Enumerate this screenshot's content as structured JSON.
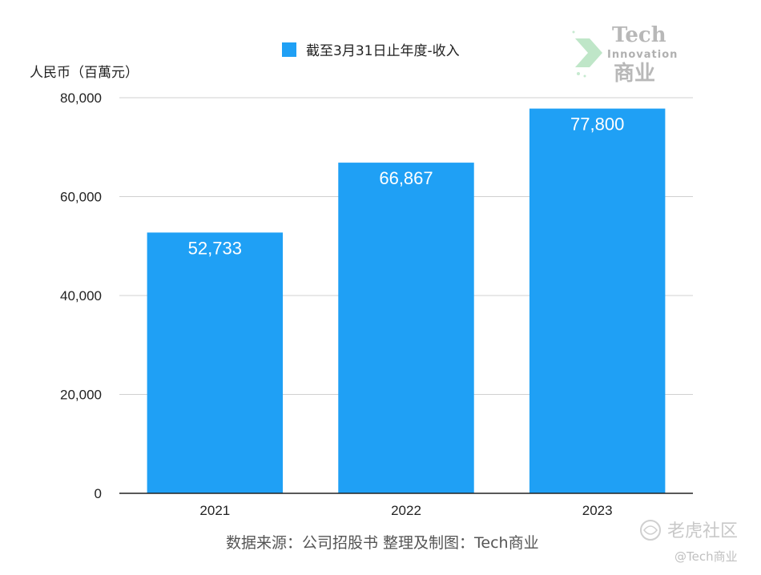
{
  "chart_data": {
    "type": "bar",
    "categories": [
      "2021",
      "2022",
      "2023"
    ],
    "series": [
      {
        "name": "截至3月31日止年度-收入",
        "values": [
          52733,
          66867,
          77800
        ]
      }
    ],
    "data_labels": [
      "52,733",
      "66,867",
      "77,800"
    ],
    "ylabel": "人民币（百萬元）",
    "xlabel": "",
    "ylim": [
      0,
      80000
    ],
    "yticks": [
      0,
      20000,
      40000,
      60000,
      80000
    ],
    "ytick_labels": [
      "0",
      "20,000",
      "40,000",
      "60,000",
      "80,000"
    ],
    "grid": true,
    "legend_position": "top",
    "bar_color": "#1fa0f5",
    "source_note": "数据来源：公司招股书  整理及制图：Tech商业"
  },
  "watermark": {
    "brand_title": "Tech",
    "brand_subtitle": "Innovation",
    "brand_cn": "商业",
    "corner_text": "老虎社区",
    "corner_handle": "@Tech商业"
  },
  "colors": {
    "bar": "#1fa0f5",
    "grid": "#d0d0d0",
    "axis": "#222222",
    "watermark_green": "#bfe6c8"
  }
}
